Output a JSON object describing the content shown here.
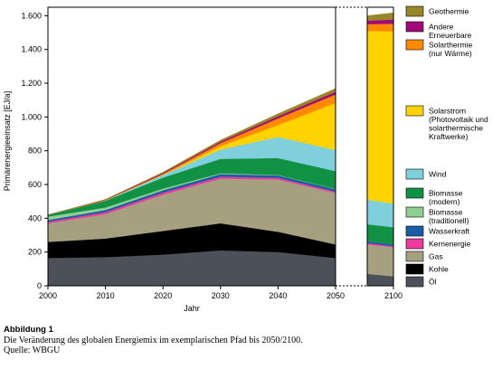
{
  "chart_data": {
    "type": "area",
    "stacked": true,
    "ylabel": "Primärenergieeinsatz [EJ/a]",
    "xlabel": "Jahr",
    "ylim": [
      0,
      1650
    ],
    "yticks": [
      0,
      200,
      400,
      600,
      800,
      1000,
      1200,
      1400,
      1600
    ],
    "ytick_labels": [
      "0",
      "200",
      "400",
      "600",
      "800",
      "1.000",
      "1.200",
      "1.400",
      "1.600"
    ],
    "x": [
      2000,
      2010,
      2020,
      2030,
      2040,
      2050
    ],
    "xticks": [
      2000,
      2010,
      2020,
      2030,
      2040,
      2050
    ],
    "x_break_label": "2100",
    "x_break_values": [
      2055,
      2100
    ],
    "legend_position": "right",
    "series": [
      {
        "name": "Öl",
        "color": "#4c5058",
        "values": [
          165,
          170,
          185,
          210,
          200,
          165
        ],
        "values_2100": [
          70,
          55
        ]
      },
      {
        "name": "Kohle",
        "color": "#000000",
        "values": [
          95,
          110,
          140,
          160,
          120,
          80
        ],
        "values_2100": [
          0,
          0
        ]
      },
      {
        "name": "Gas",
        "color": "#a6a080",
        "values": [
          110,
          145,
          215,
          265,
          310,
          305
        ],
        "values_2100": [
          175,
          175
        ]
      },
      {
        "name": "Kernenergie",
        "color": "#ee3b9e",
        "values": [
          10,
          12,
          12,
          12,
          10,
          8
        ],
        "values_2100": [
          8,
          5
        ]
      },
      {
        "name": "Wasserkraft",
        "color": "#1a5ca8",
        "values": [
          10,
          12,
          14,
          15,
          14,
          14
        ],
        "values_2100": [
          12,
          12
        ]
      },
      {
        "name": "Biomasse (traditionell)",
        "color": "#8fcf8f",
        "values": [
          20,
          15,
          10,
          5,
          3,
          2
        ],
        "values_2100": [
          0,
          0
        ]
      },
      {
        "name": "Biomasse (modern)",
        "color": "#119144",
        "values": [
          10,
          40,
          65,
          85,
          100,
          105
        ],
        "values_2100": [
          100,
          100
        ]
      },
      {
        "name": "Wind",
        "color": "#7fcfdc",
        "values": [
          0,
          2,
          15,
          55,
          125,
          125
        ],
        "values_2100": [
          145,
          140
        ]
      },
      {
        "name": "Solarstrom (Photovoltaik und solarthermische Kraftwerke)",
        "color": "#ffd200",
        "values": [
          0,
          0,
          2,
          20,
          70,
          280
        ],
        "values_2100": [
          1000,
          1020
        ]
      },
      {
        "name": "Solarthermie (nur Wärme)",
        "color": "#ff8a00",
        "values": [
          0,
          2,
          5,
          18,
          40,
          50
        ],
        "values_2100": [
          40,
          45
        ]
      },
      {
        "name": "Andere Erneuerbare",
        "color": "#a3087a",
        "values": [
          0,
          2,
          5,
          8,
          12,
          15
        ],
        "values_2100": [
          20,
          25
        ]
      },
      {
        "name": "Geothermie",
        "color": "#99852a",
        "values": [
          0,
          2,
          5,
          10,
          15,
          20
        ],
        "values_2100": [
          30,
          40
        ]
      }
    ]
  },
  "legend_lines": {
    "Geothermie": [
      "Geothermie"
    ],
    "Andere Erneuerbare": [
      "Andere",
      "Erneuerbare"
    ],
    "Solarthermie (nur Wärme)": [
      "Solarthermie",
      "(nur Wärme)"
    ],
    "Solarstrom (Photovoltaik und solarthermische Kraftwerke)": [
      "Solarstrom",
      "(Photovoltaik und",
      "solarthermische",
      "Kraftwerke)"
    ],
    "Wind": [
      "Wind"
    ],
    "Biomasse (modern)": [
      "Biomasse",
      "(modern)"
    ],
    "Biomasse (traditionell)": [
      "Biomasse",
      "(traditionell)"
    ],
    "Wasserkraft": [
      "Wasserkraft"
    ],
    "Kernenergie": [
      "Kernenergie"
    ],
    "Gas": [
      "Gas"
    ],
    "Kohle": [
      "Kohle"
    ],
    "Öl": [
      "Öl"
    ]
  },
  "caption": {
    "title": "Abbildung 1",
    "text": "Die Veränderung des globalen Energiemix im exemplarischen Pfad bis 2050/2100.",
    "source": "Quelle: WBGU"
  }
}
